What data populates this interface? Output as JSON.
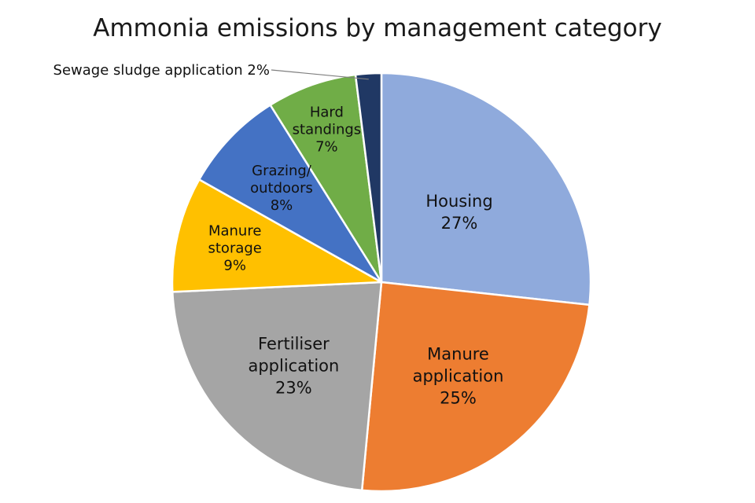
{
  "chart_data": {
    "type": "pie",
    "title": "Ammonia emissions by management category",
    "slices": [
      {
        "name": "Housing",
        "percent_label": "27%",
        "value": 27,
        "color": "#8FAADC"
      },
      {
        "name": "Manure application",
        "percent_label": "25%",
        "value": 25,
        "color": "#ED7D31"
      },
      {
        "name": "Fertiliser application",
        "percent_label": "23%",
        "value": 23,
        "color": "#A5A5A5"
      },
      {
        "name": "Manure storage",
        "percent_label": "9%",
        "value": 9,
        "color": "#FFC000"
      },
      {
        "name": "Grazing/ outdoors",
        "percent_label": "8%",
        "value": 8,
        "color": "#4472C4"
      },
      {
        "name": "Hard standings",
        "percent_label": "7%",
        "value": 7,
        "color": "#70AD47"
      },
      {
        "name": "Sewage sludge application",
        "percent_label": "2%",
        "value": 2,
        "color": "#203864"
      }
    ],
    "start": "12 o'clock",
    "direction": "clockwise",
    "legend": "none (data labels on slices)"
  }
}
